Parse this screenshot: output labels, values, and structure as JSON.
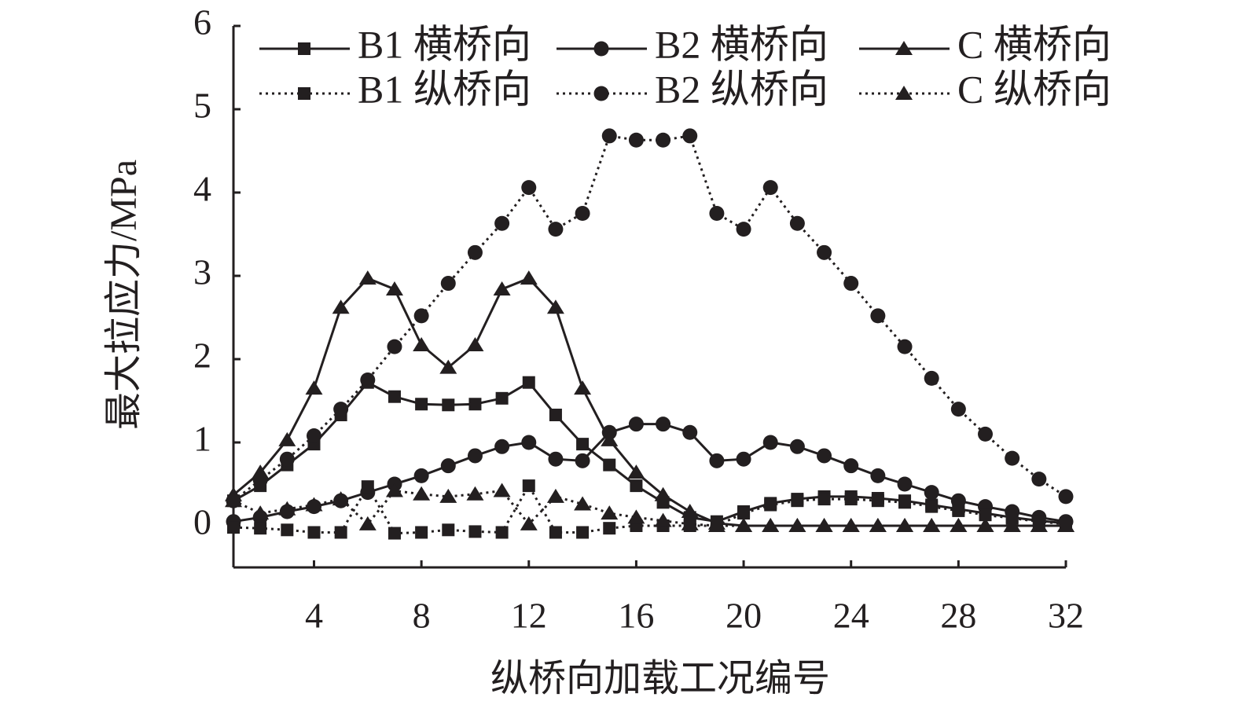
{
  "chart_data": {
    "type": "line",
    "x_label": "纵桥向加载工况编号",
    "y_label": "最大拉应力/MPa",
    "x": [
      1,
      2,
      3,
      4,
      5,
      6,
      7,
      8,
      9,
      10,
      11,
      12,
      13,
      14,
      15,
      16,
      17,
      18,
      19,
      20,
      21,
      22,
      23,
      24,
      25,
      26,
      27,
      28,
      29,
      30,
      31,
      32
    ],
    "xlim": [
      1,
      32
    ],
    "xticks": [
      4,
      8,
      12,
      16,
      20,
      24,
      28,
      32
    ],
    "ylim": [
      -0.5,
      6
    ],
    "yticks": [
      0,
      1,
      2,
      3,
      4,
      5,
      6
    ],
    "grid": false,
    "series": [
      {
        "name": "B1 横桥向",
        "color": "#231f20",
        "marker": "square",
        "dash": false,
        "values": [
          0.3,
          0.48,
          0.73,
          0.98,
          1.33,
          1.72,
          1.55,
          1.46,
          1.45,
          1.46,
          1.53,
          1.72,
          1.33,
          0.98,
          0.73,
          0.48,
          0.28,
          0.1,
          0.05,
          0.17,
          0.27,
          0.32,
          0.35,
          0.35,
          0.33,
          0.3,
          0.25,
          0.2,
          0.15,
          0.1,
          0.06,
          0.03
        ]
      },
      {
        "name": "B2 横桥向",
        "color": "#231f20",
        "marker": "circle",
        "dash": false,
        "values": [
          0.05,
          0.1,
          0.17,
          0.23,
          0.3,
          0.4,
          0.5,
          0.6,
          0.72,
          0.84,
          0.95,
          1.0,
          0.8,
          0.78,
          1.12,
          1.22,
          1.22,
          1.12,
          0.78,
          0.8,
          1.0,
          0.95,
          0.84,
          0.72,
          0.6,
          0.5,
          0.4,
          0.3,
          0.23,
          0.17,
          0.1,
          0.05
        ]
      },
      {
        "name": "C 横桥向",
        "color": "#231f20",
        "marker": "triangle",
        "dash": false,
        "values": [
          0.37,
          0.64,
          1.03,
          1.65,
          2.62,
          2.97,
          2.84,
          2.17,
          1.9,
          2.17,
          2.84,
          2.97,
          2.62,
          1.65,
          1.03,
          0.64,
          0.37,
          0.17,
          0.03,
          0,
          0,
          0,
          0,
          0,
          0,
          0,
          0,
          0,
          0,
          0,
          0,
          0
        ]
      },
      {
        "name": "B1 纵桥向",
        "color": "#231f20",
        "marker": "square",
        "dash": true,
        "values": [
          -0.02,
          -0.03,
          -0.05,
          -0.08,
          -0.08,
          0.47,
          -0.09,
          -0.08,
          -0.05,
          -0.07,
          -0.08,
          0.48,
          -0.08,
          -0.08,
          -0.03,
          0,
          0,
          0,
          0,
          0.15,
          0.25,
          0.3,
          0.32,
          0.32,
          0.3,
          0.28,
          0.23,
          0.18,
          0.13,
          0.09,
          0.05,
          0.02
        ]
      },
      {
        "name": "B2 纵桥向",
        "color": "#231f20",
        "marker": "circle",
        "dash": true,
        "values": [
          0.3,
          0.55,
          0.8,
          1.08,
          1.4,
          1.75,
          2.15,
          2.52,
          2.91,
          3.28,
          3.63,
          4.06,
          3.56,
          3.75,
          4.68,
          4.63,
          4.63,
          4.68,
          3.75,
          3.56,
          4.06,
          3.63,
          3.28,
          2.91,
          2.52,
          2.15,
          1.77,
          1.4,
          1.1,
          0.81,
          0.56,
          0.35
        ]
      },
      {
        "name": "C 纵桥向",
        "color": "#231f20",
        "marker": "triangle",
        "dash": true,
        "values": [
          0.3,
          0.15,
          0.2,
          0.25,
          0.32,
          0.02,
          0.42,
          0.38,
          0.35,
          0.38,
          0.42,
          0.02,
          0.35,
          0.26,
          0.15,
          0.1,
          0.06,
          0.02,
          0,
          0,
          0,
          0,
          0,
          0,
          0,
          0,
          0,
          0,
          0,
          0,
          0,
          0
        ]
      }
    ]
  }
}
